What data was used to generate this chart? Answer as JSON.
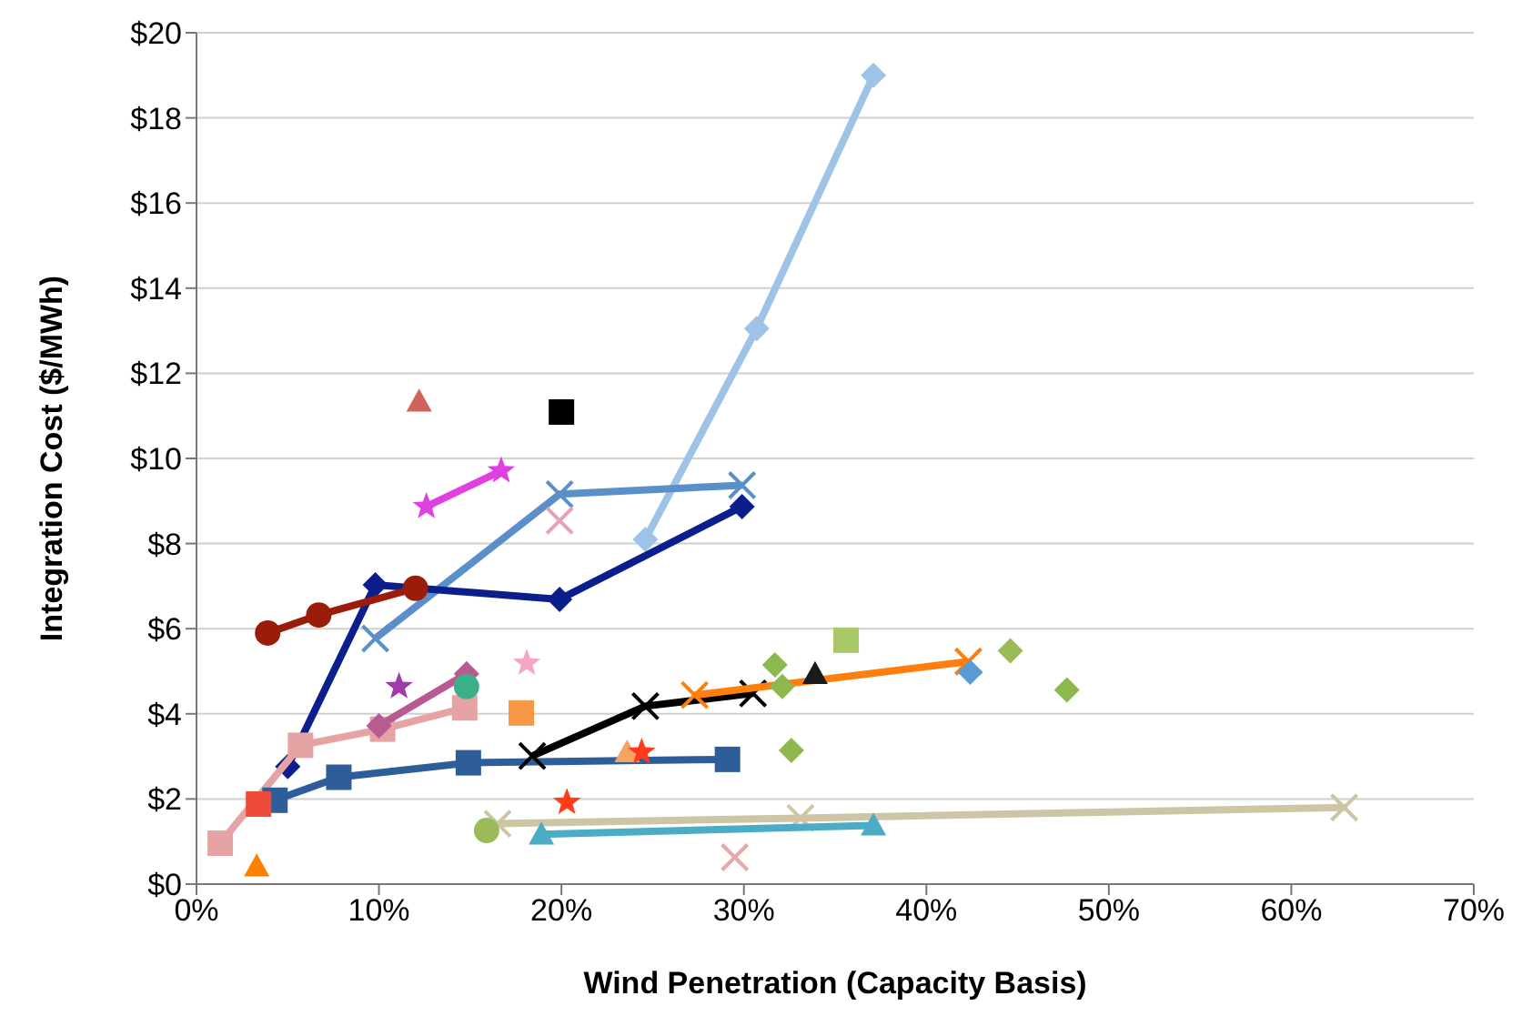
{
  "chart_data": {
    "type": "scatter",
    "xlabel": "Wind Penetration (Capacity Basis)",
    "ylabel": "Integration Cost ($/MWh)",
    "xlim": [
      0,
      70
    ],
    "xticks": [
      {
        "value": 0,
        "label": "0%"
      },
      {
        "value": 10,
        "label": "10%"
      },
      {
        "value": 20,
        "label": "20%"
      },
      {
        "value": 30,
        "label": "30%"
      },
      {
        "value": 40,
        "label": "40%"
      },
      {
        "value": 50,
        "label": "50%"
      },
      {
        "value": 60,
        "label": "60%"
      },
      {
        "value": 70,
        "label": "70%"
      }
    ],
    "ylim": [
      0,
      20
    ],
    "yticks": [
      {
        "value": 0,
        "label": "$0"
      },
      {
        "value": 2,
        "label": "$2"
      },
      {
        "value": 4,
        "label": "$4"
      },
      {
        "value": 6,
        "label": "$6"
      },
      {
        "value": 8,
        "label": "$8"
      },
      {
        "value": 10,
        "label": "$10"
      },
      {
        "value": 12,
        "label": "$12"
      },
      {
        "value": 14,
        "label": "$14"
      },
      {
        "value": 16,
        "label": "$16"
      },
      {
        "value": 18,
        "label": "$18"
      },
      {
        "value": 20,
        "label": "$20"
      }
    ],
    "grid": "y",
    "series": [
      {
        "type": "line",
        "marker": "diamond",
        "color": "#9dc3e6",
        "x": [
          24.6,
          30.7,
          37.1
        ],
        "values": [
          8.1,
          13.05,
          19.0
        ]
      },
      {
        "type": "line",
        "marker": "cross",
        "color": "#5b8fc9",
        "x": [
          9.8,
          19.9,
          29.9
        ],
        "values": [
          5.77,
          9.16,
          9.37
        ]
      },
      {
        "type": "line",
        "marker": "diamond",
        "color": "#0a1e8c",
        "x": [
          5.0,
          9.8,
          19.9,
          29.9
        ],
        "values": [
          2.76,
          7.03,
          6.69,
          8.87
        ]
      },
      {
        "type": "line",
        "marker": "circle",
        "color": "#9b1c0a",
        "x": [
          3.9,
          6.7,
          12.0
        ],
        "values": [
          5.9,
          6.32,
          6.95
        ]
      },
      {
        "type": "line",
        "marker": "star",
        "color": "#e040e0",
        "x": [
          12.6,
          16.7
        ],
        "values": [
          8.87,
          9.71
        ]
      },
      {
        "type": "scatter",
        "marker": "triangle",
        "color": "#d0645a",
        "x": [
          12.2
        ],
        "values": [
          11.34
        ]
      },
      {
        "type": "scatter",
        "marker": "square",
        "color": "#000000",
        "x": [
          20.0
        ],
        "values": [
          11.09
        ]
      },
      {
        "type": "scatter",
        "marker": "cross",
        "color": "#e8a0b8",
        "x": [
          19.9
        ],
        "values": [
          8.54
        ]
      },
      {
        "type": "line",
        "marker": "square",
        "color": "#e6a3a3",
        "x": [
          1.3,
          5.7,
          10.2,
          14.7
        ],
        "values": [
          0.96,
          3.26,
          3.64,
          4.14
        ]
      },
      {
        "type": "line",
        "marker": "diamond",
        "color": "#b85b92",
        "x": [
          10.0,
          14.8
        ],
        "values": [
          3.72,
          4.94
        ]
      },
      {
        "type": "scatter",
        "marker": "star",
        "color": "#a23baa",
        "x": [
          11.1
        ],
        "values": [
          4.64
        ]
      },
      {
        "type": "scatter",
        "marker": "circle",
        "color": "#3cb08a",
        "x": [
          14.8
        ],
        "values": [
          4.64
        ]
      },
      {
        "type": "scatter",
        "marker": "star",
        "color": "#f4a6c8",
        "x": [
          18.1
        ],
        "values": [
          5.19
        ]
      },
      {
        "type": "scatter",
        "marker": "square",
        "color": "#f79646",
        "x": [
          17.8
        ],
        "values": [
          4.02
        ]
      },
      {
        "type": "line",
        "marker": "square",
        "color": "#2e5e9a",
        "x": [
          4.3,
          7.8,
          14.9,
          29.1
        ],
        "values": [
          1.97,
          2.51,
          2.85,
          2.93
        ]
      },
      {
        "type": "scatter",
        "marker": "square",
        "color": "#f04a3a",
        "x": [
          3.4
        ],
        "values": [
          1.88
        ]
      },
      {
        "type": "scatter",
        "marker": "triangle",
        "color": "#ff7f00",
        "x": [
          3.3
        ],
        "values": [
          0.42
        ]
      },
      {
        "type": "line",
        "marker": "cross",
        "color": "#000000",
        "x": [
          18.4,
          24.6,
          30.5
        ],
        "values": [
          3.01,
          4.18,
          4.48
        ]
      },
      {
        "type": "line",
        "marker": "cross",
        "color": "#ff7f0e",
        "x": [
          27.3,
          42.3
        ],
        "values": [
          4.44,
          5.23
        ]
      },
      {
        "type": "scatter",
        "marker": "diamond",
        "color": "#5b9bd5",
        "x": [
          42.4
        ],
        "values": [
          4.98
        ]
      },
      {
        "type": "scatter",
        "marker": "diamond",
        "color": "#9bbb59",
        "x": [
          44.6
        ],
        "values": [
          5.48
        ]
      },
      {
        "type": "scatter",
        "marker": "diamond",
        "color": "#8cb84e",
        "x": [
          31.7,
          32.1,
          32.6,
          47.7
        ],
        "values": [
          5.15,
          4.64,
          3.14,
          4.56
        ]
      },
      {
        "type": "scatter",
        "marker": "triangle",
        "color": "#1a1a1a",
        "x": [
          33.9
        ],
        "values": [
          4.94
        ]
      },
      {
        "type": "scatter",
        "marker": "square",
        "color": "#a9c86a",
        "x": [
          35.6
        ],
        "values": [
          5.73
        ]
      },
      {
        "type": "scatter",
        "marker": "triangle",
        "color": "#f4a460",
        "x": [
          23.6
        ],
        "values": [
          3.1
        ]
      },
      {
        "type": "scatter",
        "marker": "star",
        "color": "#ff3b1a",
        "x": [
          24.4,
          20.3
        ],
        "values": [
          3.1,
          1.92
        ]
      },
      {
        "type": "line",
        "marker": "cross",
        "color": "#cdc5a5",
        "x": [
          16.5,
          33.1,
          62.9
        ],
        "values": [
          1.42,
          1.55,
          1.8
        ]
      },
      {
        "type": "line",
        "marker": "triangle",
        "color": "#4bacc6",
        "x": [
          18.9,
          37.1
        ],
        "values": [
          1.17,
          1.38
        ]
      },
      {
        "type": "scatter",
        "marker": "circle",
        "color": "#9bbb59",
        "x": [
          15.9
        ],
        "values": [
          1.26
        ]
      },
      {
        "type": "scatter",
        "marker": "cross",
        "color": "#e6a8a8",
        "x": [
          29.5
        ],
        "values": [
          0.63
        ]
      }
    ]
  }
}
